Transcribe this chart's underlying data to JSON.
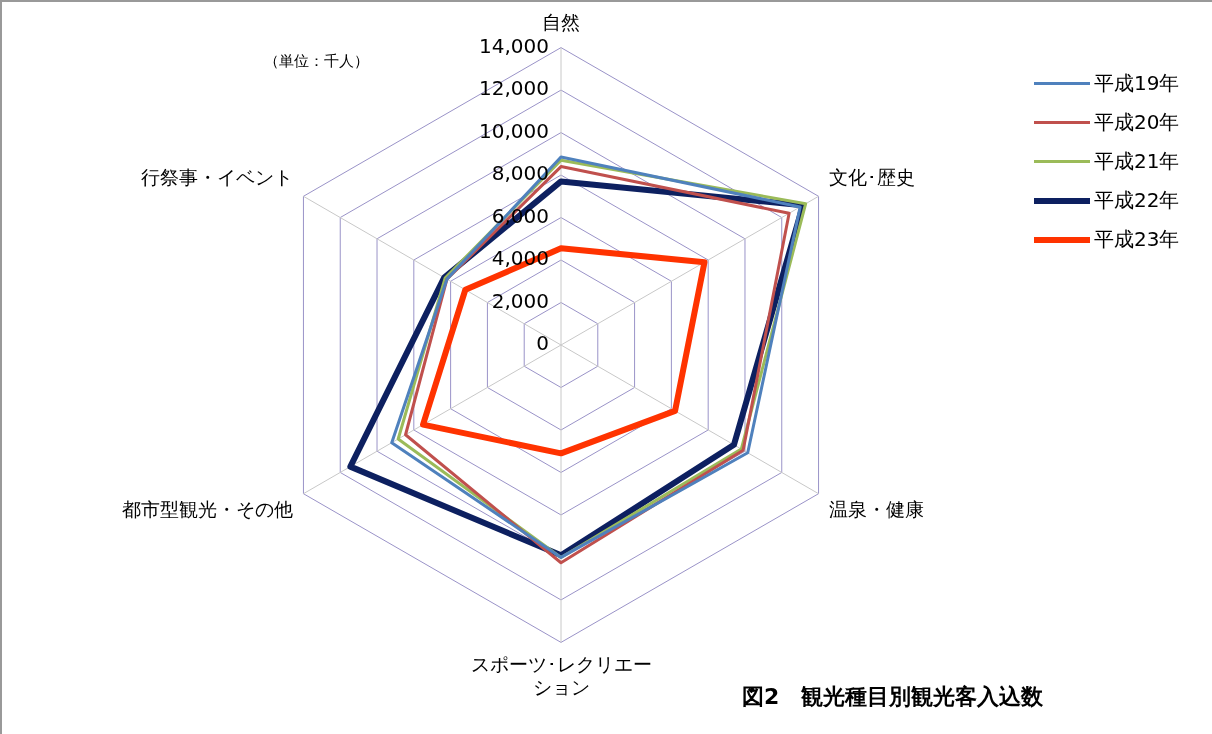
{
  "chart_data": {
    "type": "radar",
    "title": "図2　観光種目別観光客入込数",
    "categories": [
      "自然",
      "文化･歴史",
      "温泉・健康",
      "スポーツ･レクリエーション",
      "都市型観光・その他",
      "行祭事・イベント"
    ],
    "series": [
      {
        "name": "平成19年",
        "color": "#4f81bd",
        "values": [
          8850,
          13000,
          10150,
          10000,
          9200,
          6200
        ]
      },
      {
        "name": "平成20年",
        "color": "#c0504d",
        "values": [
          8400,
          12400,
          9900,
          10250,
          8450,
          6200
        ]
      },
      {
        "name": "平成21年",
        "color": "#9bbb59",
        "values": [
          8700,
          13300,
          9800,
          10000,
          8850,
          6300
        ]
      },
      {
        "name": "平成22年",
        "color": "#0d2060",
        "values": [
          7700,
          13150,
          9400,
          9900,
          11450,
          6350
        ]
      },
      {
        "name": "平成23年",
        "color": "#ff3300",
        "values": [
          4550,
          7800,
          6200,
          5100,
          7500,
          5200
        ]
      }
    ],
    "ylim": [
      0,
      14000
    ],
    "yticks": [
      0,
      {
        "value": 2000,
        "label": "2,000"
      },
      {
        "value": 4000,
        "label": "4,000"
      },
      {
        "value": 6000,
        "label": "6,000"
      },
      {
        "value": 8000,
        "label": "8,000"
      },
      {
        "value": 10000,
        "label": "10,000"
      },
      {
        "value": 12000,
        "label": "12,000"
      },
      {
        "value": 14000,
        "label": "14,000"
      }
    ],
    "annotations": [
      "（単位：千人）"
    ],
    "grid": true,
    "legend": "top right",
    "marker": "none"
  }
}
